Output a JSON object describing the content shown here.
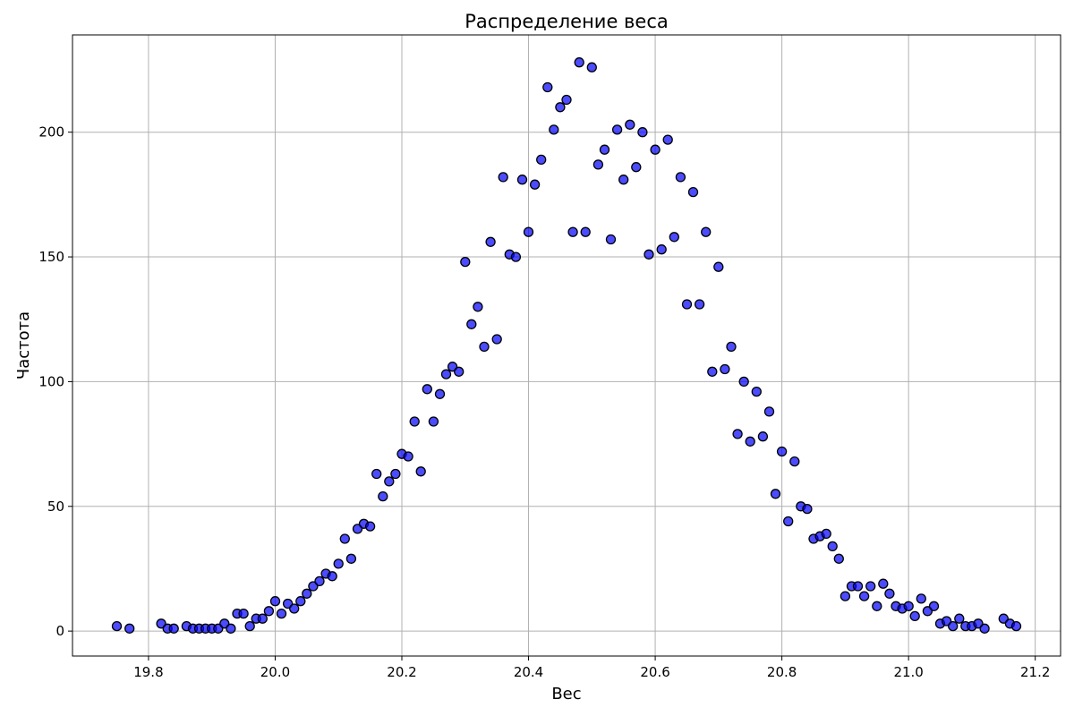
{
  "chart_data": {
    "type": "scatter",
    "title": "Распределение веса",
    "xlabel": "Вес",
    "ylabel": "Частота",
    "xlim": [
      19.68,
      21.24
    ],
    "ylim": [
      -10,
      239
    ],
    "grid": true,
    "x_ticks": [
      19.8,
      20.0,
      20.2,
      20.4,
      20.6,
      20.8,
      21.0,
      21.2
    ],
    "x_tick_labels": [
      "19.8",
      "20.0",
      "20.2",
      "20.4",
      "20.6",
      "20.8",
      "21.0",
      "21.2"
    ],
    "y_ticks": [
      0,
      50,
      100,
      150,
      200
    ],
    "y_tick_labels": [
      "0",
      "50",
      "100",
      "150",
      "200"
    ],
    "colors": {
      "point_fill": "#0000ff",
      "point_edge": "#000000",
      "grid": "#b0b0b0"
    },
    "points": [
      [
        19.75,
        2
      ],
      [
        19.77,
        1
      ],
      [
        19.82,
        3
      ],
      [
        19.83,
        1
      ],
      [
        19.84,
        1
      ],
      [
        19.86,
        2
      ],
      [
        19.87,
        1
      ],
      [
        19.88,
        1
      ],
      [
        19.89,
        1
      ],
      [
        19.9,
        1
      ],
      [
        19.91,
        1
      ],
      [
        19.92,
        3
      ],
      [
        19.93,
        1
      ],
      [
        19.94,
        7
      ],
      [
        19.95,
        7
      ],
      [
        19.96,
        2
      ],
      [
        19.97,
        5
      ],
      [
        19.98,
        5
      ],
      [
        19.99,
        8
      ],
      [
        20.0,
        12
      ],
      [
        20.01,
        7
      ],
      [
        20.02,
        11
      ],
      [
        20.03,
        9
      ],
      [
        20.04,
        12
      ],
      [
        20.05,
        15
      ],
      [
        20.06,
        18
      ],
      [
        20.07,
        20
      ],
      [
        20.08,
        23
      ],
      [
        20.09,
        22
      ],
      [
        20.1,
        27
      ],
      [
        20.11,
        37
      ],
      [
        20.12,
        29
      ],
      [
        20.13,
        41
      ],
      [
        20.14,
        43
      ],
      [
        20.15,
        42
      ],
      [
        20.16,
        63
      ],
      [
        20.17,
        54
      ],
      [
        20.18,
        60
      ],
      [
        20.19,
        63
      ],
      [
        20.2,
        71
      ],
      [
        20.21,
        70
      ],
      [
        20.22,
        84
      ],
      [
        20.23,
        64
      ],
      [
        20.24,
        97
      ],
      [
        20.25,
        84
      ],
      [
        20.26,
        95
      ],
      [
        20.27,
        103
      ],
      [
        20.28,
        106
      ],
      [
        20.29,
        104
      ],
      [
        20.3,
        148
      ],
      [
        20.31,
        123
      ],
      [
        20.32,
        130
      ],
      [
        20.33,
        114
      ],
      [
        20.34,
        156
      ],
      [
        20.35,
        117
      ],
      [
        20.36,
        182
      ],
      [
        20.37,
        151
      ],
      [
        20.38,
        150
      ],
      [
        20.39,
        181
      ],
      [
        20.4,
        160
      ],
      [
        20.41,
        179
      ],
      [
        20.42,
        189
      ],
      [
        20.43,
        218
      ],
      [
        20.44,
        201
      ],
      [
        20.45,
        210
      ],
      [
        20.46,
        213
      ],
      [
        20.47,
        160
      ],
      [
        20.48,
        228
      ],
      [
        20.49,
        160
      ],
      [
        20.5,
        226
      ],
      [
        20.51,
        187
      ],
      [
        20.52,
        193
      ],
      [
        20.53,
        157
      ],
      [
        20.54,
        201
      ],
      [
        20.55,
        181
      ],
      [
        20.56,
        203
      ],
      [
        20.57,
        186
      ],
      [
        20.58,
        200
      ],
      [
        20.59,
        151
      ],
      [
        20.6,
        193
      ],
      [
        20.61,
        153
      ],
      [
        20.62,
        197
      ],
      [
        20.63,
        158
      ],
      [
        20.64,
        182
      ],
      [
        20.65,
        131
      ],
      [
        20.66,
        176
      ],
      [
        20.67,
        131
      ],
      [
        20.68,
        160
      ],
      [
        20.69,
        104
      ],
      [
        20.7,
        146
      ],
      [
        20.71,
        105
      ],
      [
        20.72,
        114
      ],
      [
        20.73,
        79
      ],
      [
        20.74,
        100
      ],
      [
        20.75,
        76
      ],
      [
        20.76,
        96
      ],
      [
        20.77,
        78
      ],
      [
        20.78,
        88
      ],
      [
        20.79,
        55
      ],
      [
        20.8,
        72
      ],
      [
        20.81,
        44
      ],
      [
        20.82,
        68
      ],
      [
        20.83,
        50
      ],
      [
        20.84,
        49
      ],
      [
        20.85,
        37
      ],
      [
        20.86,
        38
      ],
      [
        20.87,
        39
      ],
      [
        20.88,
        34
      ],
      [
        20.89,
        29
      ],
      [
        20.9,
        14
      ],
      [
        20.91,
        18
      ],
      [
        20.92,
        18
      ],
      [
        20.93,
        14
      ],
      [
        20.94,
        18
      ],
      [
        20.95,
        10
      ],
      [
        20.96,
        19
      ],
      [
        20.97,
        15
      ],
      [
        20.98,
        10
      ],
      [
        20.99,
        9
      ],
      [
        21.0,
        10
      ],
      [
        21.01,
        6
      ],
      [
        21.02,
        13
      ],
      [
        21.03,
        8
      ],
      [
        21.04,
        10
      ],
      [
        21.05,
        3
      ],
      [
        21.06,
        4
      ],
      [
        21.07,
        2
      ],
      [
        21.08,
        5
      ],
      [
        21.09,
        2
      ],
      [
        21.1,
        2
      ],
      [
        21.11,
        3
      ],
      [
        21.12,
        1
      ],
      [
        21.15,
        5
      ],
      [
        21.16,
        3
      ],
      [
        21.17,
        2
      ]
    ]
  }
}
